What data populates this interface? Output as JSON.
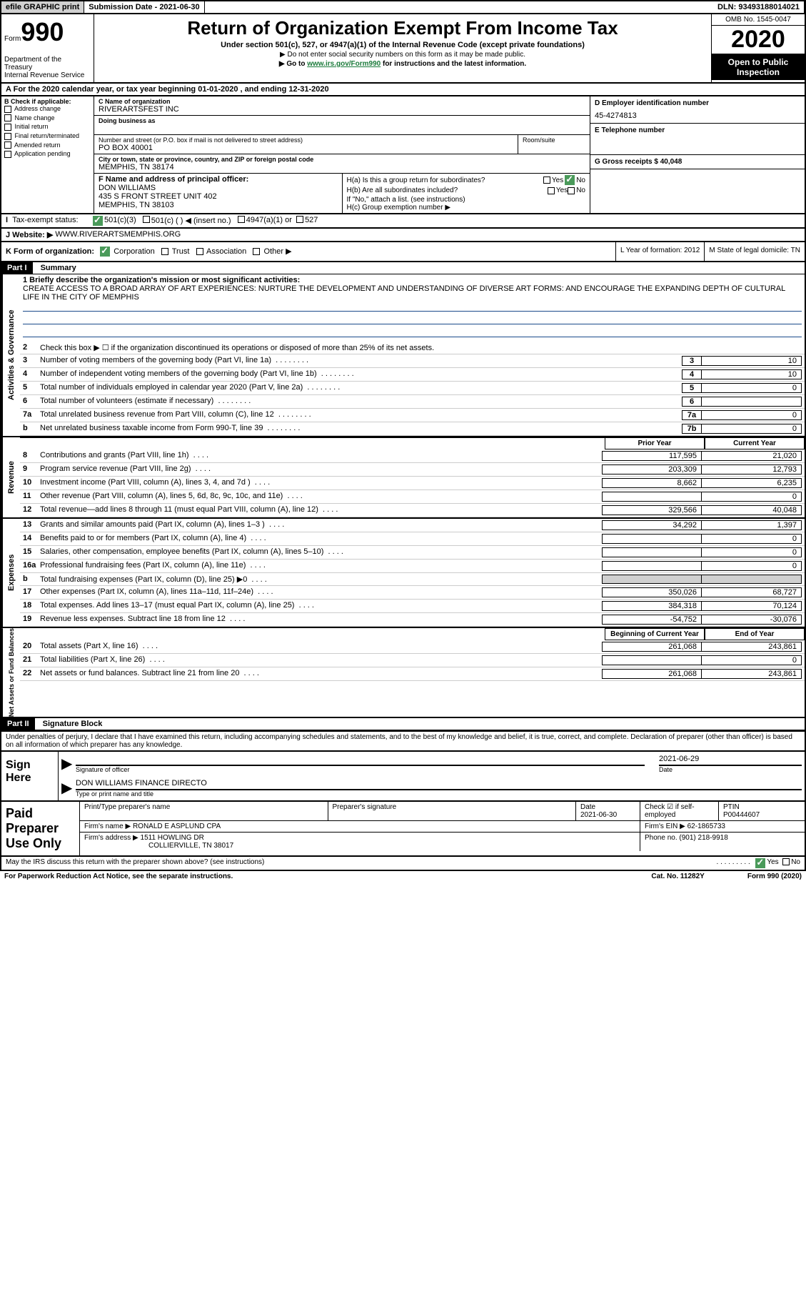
{
  "top": {
    "efile": "efile GRAPHIC print",
    "submission": "Submission Date - 2021-06-30",
    "dln": "DLN: 93493188014021"
  },
  "header": {
    "form": "Form",
    "num": "990",
    "dept": "Department of the Treasury\nInternal Revenue Service",
    "title": "Return of Organization Exempt From Income Tax",
    "subtitle": "Under section 501(c), 527, or 4947(a)(1) of the Internal Revenue Code (except private foundations)",
    "note1": "▶ Do not enter social security numbers on this form as it may be made public.",
    "note2": "▶ Go to www.irs.gov/Form990 for instructions and the latest information.",
    "omb": "OMB No. 1545-0047",
    "year": "2020",
    "inspection": "Open to Public Inspection"
  },
  "cal_year": "For the 2020 calendar year, or tax year beginning 01-01-2020    , and ending 12-31-2020",
  "b": {
    "header": "B Check if applicable:",
    "opts": [
      "Address change",
      "Name change",
      "Initial return",
      "Final return/terminated",
      "Amended return",
      "Application pending"
    ]
  },
  "c": {
    "name_label": "C Name of organization",
    "name": "RIVERARTSFEST INC",
    "dba_label": "Doing business as",
    "addr_label": "Number and street (or P.O. box if mail is not delivered to street address)",
    "addr": "PO BOX 40001",
    "room_label": "Room/suite",
    "city_label": "City or town, state or province, country, and ZIP or foreign postal code",
    "city": "MEMPHIS, TN  38174"
  },
  "d": {
    "label": "D Employer identification number",
    "value": "45-4274813"
  },
  "e": {
    "label": "E Telephone number"
  },
  "g": {
    "label": "G Gross receipts $ 40,048"
  },
  "f": {
    "label": "F  Name and address of principal officer:",
    "name": "DON WILLIAMS",
    "addr1": "435 S FRONT STREET UNIT 402",
    "addr2": "MEMPHIS, TN  38103"
  },
  "h": {
    "a": "H(a)  Is this a group return for subordinates?",
    "b": "H(b)  Are all subordinates included?",
    "b_note": "If \"No,\" attach a list. (see instructions)",
    "c": "H(c)  Group exemption number ▶"
  },
  "i": {
    "label": "Tax-exempt status:",
    "opts": [
      "501(c)(3)",
      "501(c) (  ) ◀ (insert no.)",
      "4947(a)(1) or",
      "527"
    ]
  },
  "j": {
    "label": "J   Website: ▶",
    "value": "WWW.RIVERARTSMEMPHIS.ORG"
  },
  "k": {
    "label": "K Form of organization:",
    "opts": [
      "Corporation",
      "Trust",
      "Association",
      "Other ▶"
    ]
  },
  "l": {
    "label": "L Year of formation: 2012"
  },
  "m": {
    "label": "M State of legal domicile: TN"
  },
  "part1": {
    "header": "Part I",
    "title": "Summary",
    "mission_label": "1  Briefly describe the organization's mission or most significant activities:",
    "mission": "CREATE ACCESS TO A BROAD ARRAY OF ART EXPERIENCES: NURTURE THE DEVELOPMENT AND UNDERSTANDING OF DIVERSE ART FORMS: AND ENCOURAGE THE EXPANDING DEPTH OF CULTURAL LIFE IN THE CITY OF MEMPHIS"
  },
  "activities": {
    "label": "Activities & Governance",
    "l2": "Check this box ▶ ☐  if the organization discontinued its operations or disposed of more than 25% of its net assets.",
    "rows": [
      {
        "n": "3",
        "t": "Number of voting members of the governing body (Part VI, line 1a)",
        "box": "3",
        "v": "10"
      },
      {
        "n": "4",
        "t": "Number of independent voting members of the governing body (Part VI, line 1b)",
        "box": "4",
        "v": "10"
      },
      {
        "n": "5",
        "t": "Total number of individuals employed in calendar year 2020 (Part V, line 2a)",
        "box": "5",
        "v": "0"
      },
      {
        "n": "6",
        "t": "Total number of volunteers (estimate if necessary)",
        "box": "6",
        "v": ""
      },
      {
        "n": "7a",
        "t": "Total unrelated business revenue from Part VIII, column (C), line 12",
        "box": "7a",
        "v": "0"
      },
      {
        "n": "b",
        "t": "Net unrelated business taxable income from Form 990-T, line 39",
        "box": "7b",
        "v": "0"
      }
    ]
  },
  "revenue": {
    "label": "Revenue",
    "prior_header": "Prior Year",
    "current_header": "Current Year",
    "rows": [
      {
        "n": "8",
        "t": "Contributions and grants (Part VIII, line 1h)",
        "p": "117,595",
        "c": "21,020"
      },
      {
        "n": "9",
        "t": "Program service revenue (Part VIII, line 2g)",
        "p": "203,309",
        "c": "12,793"
      },
      {
        "n": "10",
        "t": "Investment income (Part VIII, column (A), lines 3, 4, and 7d )",
        "p": "8,662",
        "c": "6,235"
      },
      {
        "n": "11",
        "t": "Other revenue (Part VIII, column (A), lines 5, 6d, 8c, 9c, 10c, and 11e)",
        "p": "",
        "c": "0"
      },
      {
        "n": "12",
        "t": "Total revenue—add lines 8 through 11 (must equal Part VIII, column (A), line 12)",
        "p": "329,566",
        "c": "40,048"
      }
    ]
  },
  "expenses": {
    "label": "Expenses",
    "rows": [
      {
        "n": "13",
        "t": "Grants and similar amounts paid (Part IX, column (A), lines 1–3 )",
        "p": "34,292",
        "c": "1,397"
      },
      {
        "n": "14",
        "t": "Benefits paid to or for members (Part IX, column (A), line 4)",
        "p": "",
        "c": "0"
      },
      {
        "n": "15",
        "t": "Salaries, other compensation, employee benefits (Part IX, column (A), lines 5–10)",
        "p": "",
        "c": "0"
      },
      {
        "n": "16a",
        "t": "Professional fundraising fees (Part IX, column (A), line 11e)",
        "p": "",
        "c": "0"
      },
      {
        "n": "b",
        "t": "Total fundraising expenses (Part IX, column (D), line 25) ▶0",
        "p": "gray",
        "c": "gray"
      },
      {
        "n": "17",
        "t": "Other expenses (Part IX, column (A), lines 11a–11d, 11f–24e)",
        "p": "350,026",
        "c": "68,727"
      },
      {
        "n": "18",
        "t": "Total expenses. Add lines 13–17 (must equal Part IX, column (A), line 25)",
        "p": "384,318",
        "c": "70,124"
      },
      {
        "n": "19",
        "t": "Revenue less expenses. Subtract line 18 from line 12",
        "p": "-54,752",
        "c": "-30,076"
      }
    ]
  },
  "netassets": {
    "label": "Net Assets or Fund Balances",
    "begin_header": "Beginning of Current Year",
    "end_header": "End of Year",
    "rows": [
      {
        "n": "20",
        "t": "Total assets (Part X, line 16)",
        "p": "261,068",
        "c": "243,861"
      },
      {
        "n": "21",
        "t": "Total liabilities (Part X, line 26)",
        "p": "",
        "c": "0"
      },
      {
        "n": "22",
        "t": "Net assets or fund balances. Subtract line 21 from line 20",
        "p": "261,068",
        "c": "243,861"
      }
    ]
  },
  "part2": {
    "header": "Part II",
    "title": "Signature Block",
    "declaration": "Under penalties of perjury, I declare that I have examined this return, including accompanying schedules and statements, and to the best of my knowledge and belief, it is true, correct, and complete. Declaration of preparer (other than officer) is based on all information of which preparer has any knowledge."
  },
  "sign": {
    "label": "Sign Here",
    "sig_officer": "Signature of officer",
    "date": "2021-06-29",
    "date_label": "Date",
    "name": "DON WILLIAMS  FINANCE DIRECTO",
    "name_label": "Type or print name and title"
  },
  "paid": {
    "label": "Paid Preparer Use Only",
    "h1": "Print/Type preparer's name",
    "h2": "Preparer's signature",
    "h3": "Date",
    "h3v": "2021-06-30",
    "h4": "Check ☑ if self-employed",
    "h5": "PTIN",
    "h5v": "P00444607",
    "firm_label": "Firm's name    ▶",
    "firm": "RONALD E ASPLUND CPA",
    "ein_label": "Firm's EIN ▶",
    "ein": "62-1865733",
    "addr_label": "Firm's address ▶",
    "addr1": "1511 HOWLING DR",
    "addr2": "COLLIERVILLE, TN  38017",
    "phone_label": "Phone no.",
    "phone": "(901) 218-9918"
  },
  "footer": {
    "discuss": "May the IRS discuss this return with the preparer shown above? (see instructions)",
    "paperwork": "For Paperwork Reduction Act Notice, see the separate instructions.",
    "cat": "Cat. No. 11282Y",
    "form": "Form 990 (2020)"
  }
}
